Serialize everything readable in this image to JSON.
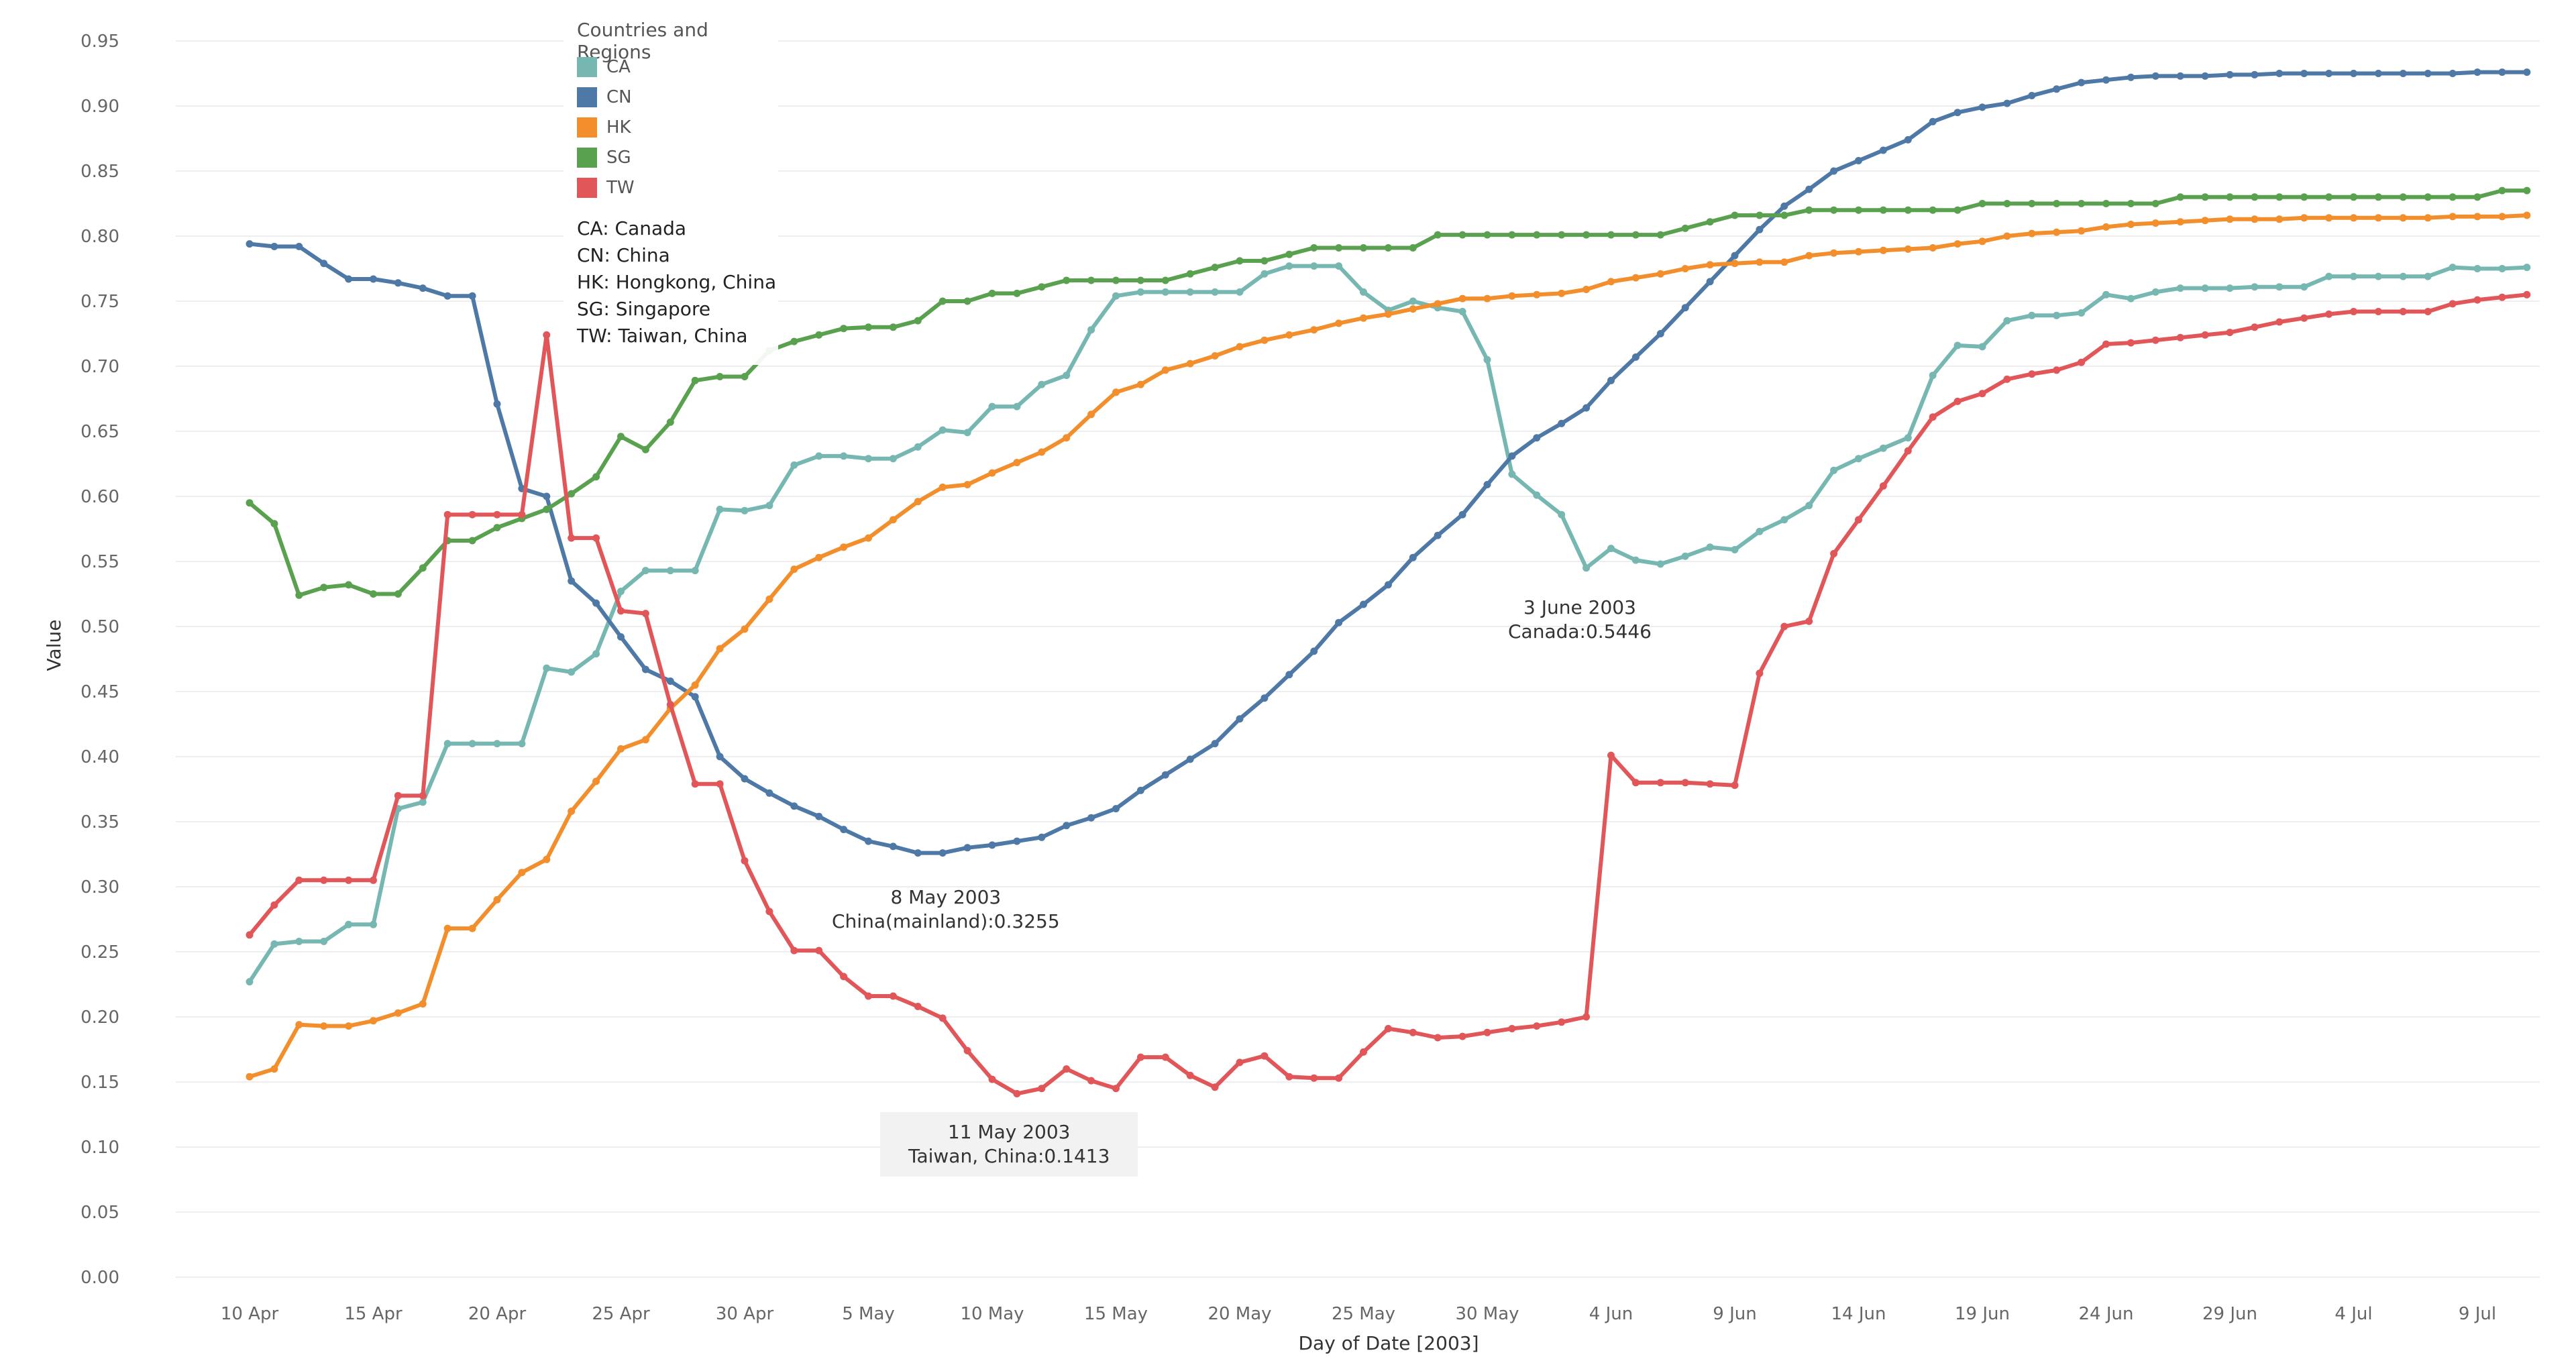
{
  "chart_data": {
    "type": "line",
    "xlabel": "Day of Date [2003]",
    "ylabel": "Value",
    "ylim": [
      0.0,
      0.95
    ],
    "yticks": [
      "0.00",
      "0.05",
      "0.10",
      "0.15",
      "0.20",
      "0.25",
      "0.30",
      "0.35",
      "0.40",
      "0.45",
      "0.50",
      "0.55",
      "0.60",
      "0.65",
      "0.70",
      "0.75",
      "0.80",
      "0.85",
      "0.90",
      "0.95"
    ],
    "x_start": "10 Apr 2003",
    "x_days": 92,
    "xticks": [
      {
        "label": "10 Apr",
        "day": 0
      },
      {
        "label": "15 Apr",
        "day": 5
      },
      {
        "label": "20 Apr",
        "day": 10
      },
      {
        "label": "25 Apr",
        "day": 15
      },
      {
        "label": "30 Apr",
        "day": 20
      },
      {
        "label": "5 May",
        "day": 25
      },
      {
        "label": "10 May",
        "day": 30
      },
      {
        "label": "15 May",
        "day": 35
      },
      {
        "label": "20 May",
        "day": 40
      },
      {
        "label": "25 May",
        "day": 45
      },
      {
        "label": "30 May",
        "day": 50
      },
      {
        "label": "4 Jun",
        "day": 55
      },
      {
        "label": "9 Jun",
        "day": 60
      },
      {
        "label": "14 Jun",
        "day": 65
      },
      {
        "label": "19 Jun",
        "day": 70
      },
      {
        "label": "24 Jun",
        "day": 75
      },
      {
        "label": "29 Jun",
        "day": 80
      },
      {
        "label": "4 Jul",
        "day": 85
      },
      {
        "label": "9 Jul",
        "day": 90
      }
    ],
    "series": [
      {
        "name": "CA",
        "color": "#76b7b2",
        "values": [
          0.227,
          0.256,
          0.258,
          0.258,
          0.271,
          0.271,
          0.36,
          0.365,
          0.41,
          0.41,
          0.41,
          0.41,
          0.468,
          0.465,
          0.479,
          0.527,
          0.543,
          0.543,
          0.543,
          0.59,
          0.589,
          0.593,
          0.624,
          0.631,
          0.631,
          0.629,
          0.629,
          0.638,
          0.651,
          0.649,
          0.669,
          0.669,
          0.686,
          0.693,
          0.728,
          0.754,
          0.757,
          0.757,
          0.757,
          0.757,
          0.757,
          0.771,
          0.777,
          0.777,
          0.777,
          0.757,
          0.743,
          0.75,
          0.745,
          0.742,
          0.705,
          0.617,
          0.601,
          0.586,
          0.545,
          0.56,
          0.551,
          0.548,
          0.554,
          0.561,
          0.559,
          0.573,
          0.582,
          0.593,
          0.62,
          0.629,
          0.637,
          0.645,
          0.693,
          0.716,
          0.715,
          0.735,
          0.739,
          0.739,
          0.741,
          0.755,
          0.752,
          0.757,
          0.76,
          0.76,
          0.76,
          0.761,
          0.761,
          0.761,
          0.769,
          0.769,
          0.769,
          0.769,
          0.769,
          0.776,
          0.775,
          0.775,
          0.776
        ]
      },
      {
        "name": "CN",
        "color": "#4e79a7",
        "values": [
          0.794,
          0.792,
          0.792,
          0.779,
          0.767,
          0.767,
          0.764,
          0.76,
          0.754,
          0.754,
          0.671,
          0.606,
          0.6,
          0.535,
          0.518,
          0.492,
          0.467,
          0.458,
          0.446,
          0.4,
          0.383,
          0.372,
          0.362,
          0.354,
          0.344,
          0.335,
          0.331,
          0.326,
          0.326,
          0.33,
          0.332,
          0.335,
          0.338,
          0.347,
          0.353,
          0.36,
          0.374,
          0.386,
          0.398,
          0.41,
          0.429,
          0.445,
          0.463,
          0.481,
          0.503,
          0.517,
          0.532,
          0.553,
          0.57,
          0.586,
          0.609,
          0.631,
          0.645,
          0.656,
          0.668,
          0.689,
          0.707,
          0.725,
          0.745,
          0.765,
          0.785,
          0.805,
          0.823,
          0.836,
          0.85,
          0.858,
          0.866,
          0.874,
          0.888,
          0.895,
          0.899,
          0.902,
          0.908,
          0.913,
          0.918,
          0.92,
          0.922,
          0.923,
          0.923,
          0.923,
          0.924,
          0.924,
          0.925,
          0.925,
          0.925,
          0.925,
          0.925,
          0.925,
          0.925,
          0.925,
          0.926,
          0.926,
          0.926
        ]
      },
      {
        "name": "HK",
        "color": "#f28e2b",
        "values": [
          0.154,
          0.16,
          0.194,
          0.193,
          0.193,
          0.197,
          0.203,
          0.21,
          0.268,
          0.268,
          0.29,
          0.311,
          0.321,
          0.358,
          0.381,
          0.406,
          0.413,
          0.437,
          0.455,
          0.483,
          0.498,
          0.521,
          0.544,
          0.553,
          0.561,
          0.568,
          0.582,
          0.596,
          0.607,
          0.609,
          0.618,
          0.626,
          0.634,
          0.645,
          0.663,
          0.68,
          0.686,
          0.697,
          0.702,
          0.708,
          0.715,
          0.72,
          0.724,
          0.728,
          0.733,
          0.737,
          0.74,
          0.744,
          0.748,
          0.752,
          0.752,
          0.754,
          0.755,
          0.756,
          0.759,
          0.765,
          0.768,
          0.771,
          0.775,
          0.778,
          0.779,
          0.78,
          0.78,
          0.785,
          0.787,
          0.788,
          0.789,
          0.79,
          0.791,
          0.794,
          0.796,
          0.8,
          0.802,
          0.803,
          0.804,
          0.807,
          0.809,
          0.81,
          0.811,
          0.812,
          0.813,
          0.813,
          0.813,
          0.814,
          0.814,
          0.814,
          0.814,
          0.814,
          0.814,
          0.815,
          0.815,
          0.815,
          0.816
        ]
      },
      {
        "name": "SG",
        "color": "#59a14f",
        "values": [
          0.595,
          0.579,
          0.524,
          0.53,
          0.532,
          0.525,
          0.525,
          0.545,
          0.566,
          0.566,
          0.576,
          0.583,
          0.59,
          0.602,
          0.615,
          0.646,
          0.636,
          0.657,
          0.689,
          0.692,
          0.692,
          0.712,
          0.719,
          0.724,
          0.729,
          0.73,
          0.73,
          0.735,
          0.75,
          0.75,
          0.756,
          0.756,
          0.761,
          0.766,
          0.766,
          0.766,
          0.766,
          0.766,
          0.771,
          0.776,
          0.781,
          0.781,
          0.786,
          0.791,
          0.791,
          0.791,
          0.791,
          0.791,
          0.801,
          0.801,
          0.801,
          0.801,
          0.801,
          0.801,
          0.801,
          0.801,
          0.801,
          0.801,
          0.806,
          0.811,
          0.816,
          0.816,
          0.816,
          0.82,
          0.82,
          0.82,
          0.82,
          0.82,
          0.82,
          0.82,
          0.825,
          0.825,
          0.825,
          0.825,
          0.825,
          0.825,
          0.825,
          0.825,
          0.83,
          0.83,
          0.83,
          0.83,
          0.83,
          0.83,
          0.83,
          0.83,
          0.83,
          0.83,
          0.83,
          0.83,
          0.83,
          0.835,
          0.835
        ]
      },
      {
        "name": "TW",
        "color": "#e15759",
        "values": [
          0.263,
          0.286,
          0.305,
          0.305,
          0.305,
          0.305,
          0.37,
          0.37,
          0.586,
          0.586,
          0.586,
          0.586,
          0.724,
          0.568,
          0.568,
          0.512,
          0.51,
          0.44,
          0.379,
          0.379,
          0.32,
          0.281,
          0.251,
          0.251,
          0.231,
          0.216,
          0.216,
          0.208,
          0.199,
          0.174,
          0.152,
          0.141,
          0.145,
          0.16,
          0.151,
          0.145,
          0.169,
          0.169,
          0.155,
          0.146,
          0.165,
          0.17,
          0.154,
          0.153,
          0.153,
          0.173,
          0.191,
          0.188,
          0.184,
          0.185,
          0.188,
          0.191,
          0.193,
          0.196,
          0.2,
          0.401,
          0.38,
          0.38,
          0.38,
          0.379,
          0.378,
          0.464,
          0.5,
          0.504,
          0.556,
          0.582,
          0.608,
          0.635,
          0.661,
          0.673,
          0.679,
          0.69,
          0.694,
          0.697,
          0.703,
          0.717,
          0.718,
          0.72,
          0.722,
          0.724,
          0.726,
          0.73,
          0.734,
          0.737,
          0.74,
          0.742,
          0.742,
          0.742,
          0.742,
          0.748,
          0.751,
          0.753,
          0.755
        ]
      }
    ],
    "legend": {
      "title": "Countries and Regions",
      "position": "top-left",
      "items": [
        {
          "code": "CA",
          "color": "#76b7b2"
        },
        {
          "code": "CN",
          "color": "#4e79a7"
        },
        {
          "code": "HK",
          "color": "#f28e2b"
        },
        {
          "code": "SG",
          "color": "#59a14f"
        },
        {
          "code": "TW",
          "color": "#e15759"
        }
      ],
      "notes": [
        "CA: Canada",
        "CN: China",
        "HK: Hongkong, China",
        "SG: Singapore",
        "TW: Taiwan, China"
      ]
    },
    "annotations": [
      {
        "id": "cn_min",
        "date": "8 May 2003",
        "text": "China(mainland):0.3255"
      },
      {
        "id": "tw_min",
        "date": "11 May 2003",
        "text": "Taiwan, China:0.1413"
      },
      {
        "id": "ca_min",
        "date": "3 June 2003",
        "text": "Canada:0.5446"
      }
    ]
  }
}
